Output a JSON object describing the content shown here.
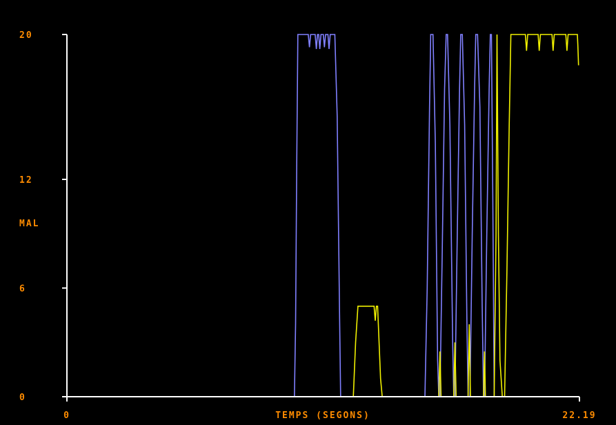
{
  "chart_data": {
    "type": "line",
    "xlabel": "TEMPS (SEGONS)",
    "ylabel": "MAL",
    "xlim": [
      0,
      22.19
    ],
    "ylim": [
      0,
      20
    ],
    "x_ticks": [
      {
        "value": 0,
        "label": "0"
      },
      {
        "value": 22.19,
        "label": "22.19"
      }
    ],
    "y_ticks": [
      {
        "value": 0,
        "label": "0"
      },
      {
        "value": 6,
        "label": "6"
      },
      {
        "value": 12,
        "label": "12"
      },
      {
        "value": 20,
        "label": "20"
      }
    ],
    "grid": false,
    "background": "#000000",
    "axis_color": "#ffffff",
    "label_color": "#ff8c00",
    "series": [
      {
        "color": "#8080ff",
        "points": [
          [
            0,
            0
          ],
          [
            9.85,
            0
          ],
          [
            9.9,
            4
          ],
          [
            9.95,
            13
          ],
          [
            10.0,
            20
          ],
          [
            10.45,
            20
          ],
          [
            10.5,
            19.3
          ],
          [
            10.55,
            20
          ],
          [
            10.75,
            20
          ],
          [
            10.8,
            19.2
          ],
          [
            10.85,
            20
          ],
          [
            10.9,
            20
          ],
          [
            10.95,
            19.2
          ],
          [
            11.0,
            20
          ],
          [
            11.1,
            20
          ],
          [
            11.15,
            19.3
          ],
          [
            11.2,
            20
          ],
          [
            11.3,
            20
          ],
          [
            11.35,
            19.2
          ],
          [
            11.4,
            20
          ],
          [
            11.6,
            20
          ],
          [
            11.7,
            15.5
          ],
          [
            11.8,
            5
          ],
          [
            11.85,
            0
          ],
          [
            15.5,
            0
          ],
          [
            15.6,
            6
          ],
          [
            15.7,
            16
          ],
          [
            15.75,
            20
          ],
          [
            15.85,
            20
          ],
          [
            15.95,
            14
          ],
          [
            16.05,
            2
          ],
          [
            16.1,
            0
          ],
          [
            16.15,
            0
          ],
          [
            16.25,
            8
          ],
          [
            16.35,
            17
          ],
          [
            16.42,
            20
          ],
          [
            16.48,
            20
          ],
          [
            16.58,
            15
          ],
          [
            16.7,
            3
          ],
          [
            16.75,
            0
          ],
          [
            16.8,
            0
          ],
          [
            16.9,
            9
          ],
          [
            17.0,
            17
          ],
          [
            17.05,
            20
          ],
          [
            17.12,
            20
          ],
          [
            17.22,
            15
          ],
          [
            17.32,
            4
          ],
          [
            17.37,
            0
          ],
          [
            17.45,
            0
          ],
          [
            17.55,
            9
          ],
          [
            17.65,
            17
          ],
          [
            17.7,
            20
          ],
          [
            17.78,
            20
          ],
          [
            17.88,
            16
          ],
          [
            17.98,
            5
          ],
          [
            18.04,
            0
          ],
          [
            18.08,
            0
          ],
          [
            18.18,
            9
          ],
          [
            18.28,
            17
          ],
          [
            18.33,
            20
          ],
          [
            18.38,
            20
          ],
          [
            18.44,
            11
          ],
          [
            18.5,
            0
          ],
          [
            18.52,
            0
          ]
        ]
      },
      {
        "color": "#f0f000",
        "points": [
          [
            11.85,
            0
          ],
          [
            12.4,
            0
          ],
          [
            12.5,
            3
          ],
          [
            12.6,
            5
          ],
          [
            13.3,
            5
          ],
          [
            13.35,
            4.2
          ],
          [
            13.4,
            5
          ],
          [
            13.45,
            5
          ],
          [
            13.5,
            3.5
          ],
          [
            13.58,
            1
          ],
          [
            13.65,
            0
          ],
          [
            15.5,
            0
          ],
          [
            16.1,
            0
          ],
          [
            16.15,
            2.5
          ],
          [
            16.2,
            0
          ],
          [
            16.75,
            0
          ],
          [
            16.8,
            3
          ],
          [
            16.85,
            0
          ],
          [
            17.37,
            0
          ],
          [
            17.42,
            4
          ],
          [
            17.47,
            0
          ],
          [
            18.04,
            0
          ],
          [
            18.08,
            2.5
          ],
          [
            18.12,
            0
          ],
          [
            18.5,
            0
          ],
          [
            18.58,
            9
          ],
          [
            18.62,
            20
          ],
          [
            18.68,
            9
          ],
          [
            18.75,
            2
          ],
          [
            18.85,
            0
          ],
          [
            18.95,
            0
          ],
          [
            19.05,
            7
          ],
          [
            19.15,
            15
          ],
          [
            19.22,
            20
          ],
          [
            19.85,
            20
          ],
          [
            19.9,
            19.1
          ],
          [
            19.95,
            20
          ],
          [
            20.4,
            20
          ],
          [
            20.45,
            19.1
          ],
          [
            20.5,
            20
          ],
          [
            21.0,
            20
          ],
          [
            21.05,
            19.1
          ],
          [
            21.1,
            20
          ],
          [
            21.6,
            20
          ],
          [
            21.65,
            19.1
          ],
          [
            21.7,
            20
          ],
          [
            22.1,
            20
          ],
          [
            22.12,
            19.4
          ],
          [
            22.15,
            18.3
          ]
        ]
      }
    ]
  }
}
